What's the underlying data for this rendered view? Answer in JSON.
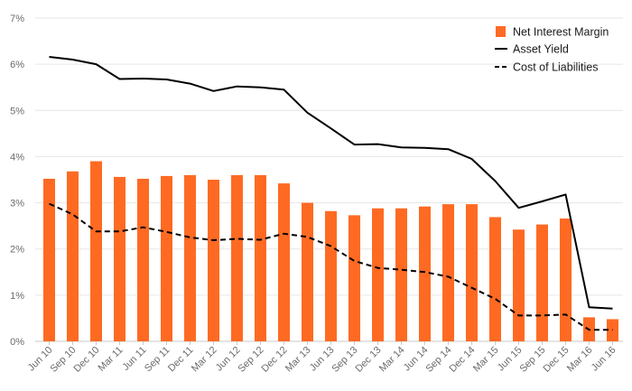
{
  "colors": {
    "bar": "#ff6a23",
    "asset_line": "#000000",
    "cost_line": "#000000",
    "grid": "#e6e6e6",
    "axis_text": "#6b6b6b"
  },
  "chart_data": {
    "type": "bar",
    "title": "",
    "xlabel": "",
    "ylabel": "",
    "ylim": [
      0,
      7
    ],
    "y_ticks": [
      0,
      1,
      2,
      3,
      4,
      5,
      6,
      7
    ],
    "y_tick_labels": [
      "0%",
      "1%",
      "2%",
      "3%",
      "4%",
      "5%",
      "6%",
      "7%"
    ],
    "grid": true,
    "legend_position": "top-right",
    "categories": [
      "Jun 10",
      "Sep 10",
      "Dec 10",
      "Mar 11",
      "Jun 11",
      "Sep 11",
      "Dec 11",
      "Mar 12",
      "Jun 12",
      "Sep 12",
      "Dec 12",
      "Mar 13",
      "Jun 13",
      "Sep 13",
      "Dec 13",
      "Mar 14",
      "Jun 14",
      "Sep 14",
      "Dec 14",
      "Mar 15",
      "Jun 15",
      "Sep 15",
      "Dec 15",
      "Mar 16",
      "Jun 16"
    ],
    "series": [
      {
        "name": "Net Interest Margin",
        "type": "bar",
        "values": [
          3.52,
          3.68,
          3.9,
          3.56,
          3.52,
          3.58,
          3.6,
          3.5,
          3.6,
          3.6,
          3.42,
          3.0,
          2.82,
          2.73,
          2.88,
          2.88,
          2.92,
          2.97,
          2.97,
          2.69,
          2.42,
          2.53,
          2.66,
          0.52,
          0.48
        ]
      },
      {
        "name": "Asset Yield",
        "type": "line",
        "style": "solid",
        "values": [
          6.16,
          6.1,
          6.0,
          5.68,
          5.69,
          5.67,
          5.58,
          5.42,
          5.52,
          5.5,
          5.45,
          4.95,
          4.61,
          4.26,
          4.27,
          4.2,
          4.19,
          4.16,
          3.95,
          3.47,
          2.89,
          3.03,
          3.18,
          0.74,
          0.71
        ]
      },
      {
        "name": "Cost of Liabilities",
        "type": "line",
        "style": "dashed",
        "values": [
          2.98,
          2.75,
          2.38,
          2.38,
          2.47,
          2.37,
          2.25,
          2.19,
          2.22,
          2.2,
          2.33,
          2.26,
          2.06,
          1.74,
          1.59,
          1.55,
          1.5,
          1.4,
          1.16,
          0.92,
          0.56,
          0.56,
          0.58,
          0.25,
          0.25
        ]
      }
    ]
  }
}
